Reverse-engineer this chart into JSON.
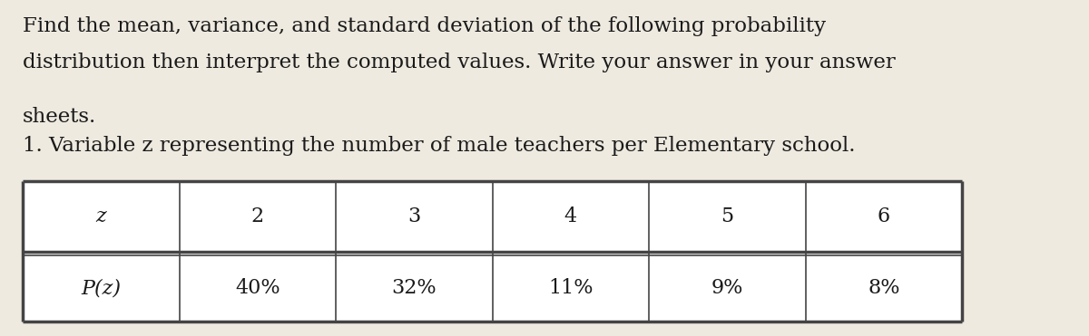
{
  "paragraph_lines": [
    "Find the mean, variance, and standard deviation of the following probability",
    "distribution then interpret the computed values. Write your answer in your answer",
    "sheets."
  ],
  "item_line": "1. Variable z representing the number of male teachers per Elementary school.",
  "table_headers": [
    "z",
    "2",
    "3",
    "4",
    "5",
    "6"
  ],
  "table_row2": [
    "P(z)",
    "40%",
    "32%",
    "11%",
    "9%",
    "8%"
  ],
  "bg_color": "#eeeae0",
  "text_color": "#1a1a1a",
  "table_line_color": "#444444",
  "font_size_para": 16.5,
  "font_size_item": 16.5,
  "font_size_table": 16,
  "fig_width": 12.0,
  "fig_height": 3.71
}
